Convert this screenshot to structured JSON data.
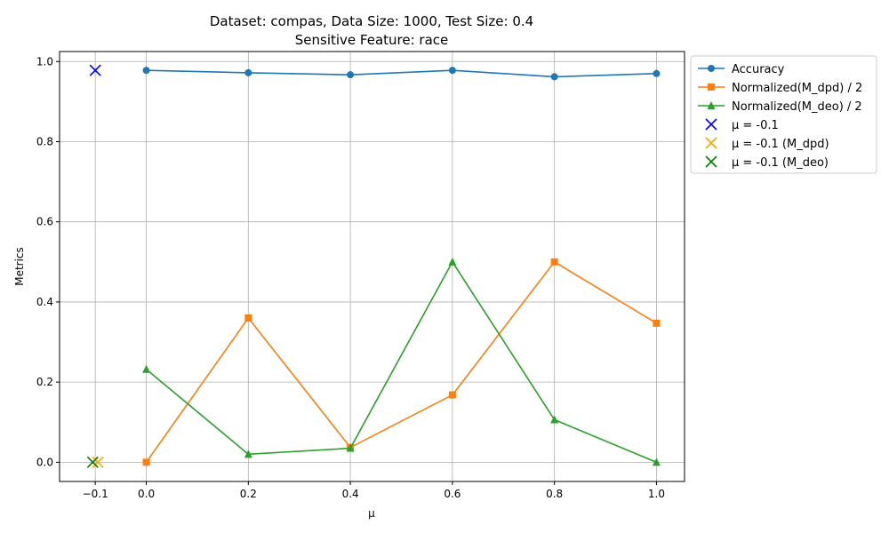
{
  "chart_data": {
    "type": "line",
    "title_line1": "Dataset: compas, Data Size: 1000, Test Size: 0.4",
    "title_line2": "Sensitive Feature: race",
    "xlabel": "μ",
    "ylabel": "Metrics",
    "xlim": [
      -0.17,
      1.055
    ],
    "ylim": [
      -0.048,
      1.025
    ],
    "xticks": [
      -0.1,
      0.0,
      0.2,
      0.4,
      0.6,
      0.8,
      1.0
    ],
    "xtick_labels": [
      "−0.1",
      "0.0",
      "0.2",
      "0.4",
      "0.6",
      "0.8",
      "1.0"
    ],
    "yticks": [
      0.0,
      0.2,
      0.4,
      0.6,
      0.8,
      1.0
    ],
    "ytick_labels": [
      "0.0",
      "0.2",
      "0.4",
      "0.6",
      "0.8",
      "1.0"
    ],
    "grid": true,
    "legend_position": "outside-top-right",
    "x": [
      0.0,
      0.2,
      0.4,
      0.6,
      0.8,
      1.0
    ],
    "series": [
      {
        "name": "Accuracy",
        "color": "#1f77b4",
        "marker": "circle",
        "values": [
          0.978,
          0.972,
          0.967,
          0.978,
          0.962,
          0.97
        ]
      },
      {
        "name": "Normalized(M_dpd) / 2",
        "color": "#ff7f0e",
        "marker": "square",
        "values": [
          0.0,
          0.36,
          0.037,
          0.168,
          0.5,
          0.347
        ]
      },
      {
        "name": "Normalized(M_deo) / 2",
        "color": "#2ca02c",
        "marker": "triangle",
        "values": [
          0.232,
          0.02,
          0.035,
          0.5,
          0.106,
          0.0
        ]
      }
    ],
    "points": [
      {
        "name": "μ = -0.1",
        "color": "#0000ff",
        "marker": "x",
        "x": -0.1,
        "y": 0.978
      },
      {
        "name": "μ = -0.1 (M_dpd)",
        "color": "#ffa500",
        "marker": "x",
        "x": -0.095,
        "y": 0.0
      },
      {
        "name": "μ = -0.1 (M_deo)",
        "color": "#008000",
        "marker": "x",
        "x": -0.105,
        "y": 0.0
      }
    ]
  }
}
